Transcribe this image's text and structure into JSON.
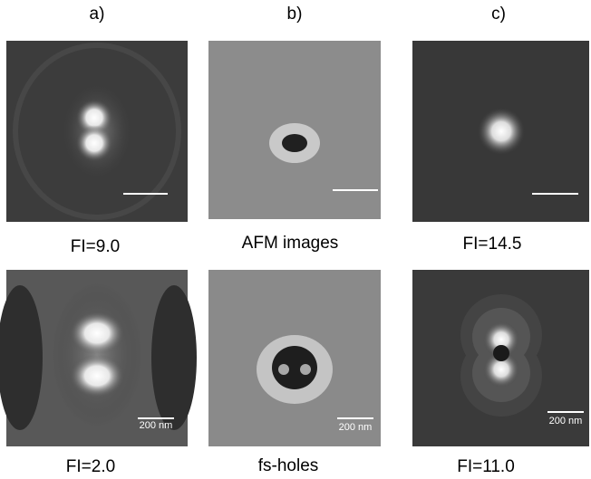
{
  "columns": [
    {
      "header": "a)"
    },
    {
      "header": "b)"
    },
    {
      "header": "c)"
    }
  ],
  "top_row": {
    "captions": [
      "FI=9.0",
      "AFM images",
      "FI=14.5"
    ]
  },
  "bottom_row": {
    "captions": [
      "FI=2.0",
      "fs-holes",
      "FI=11.0"
    ],
    "scale_labels": [
      "200 nm",
      "200 nm",
      "200 nm"
    ]
  }
}
